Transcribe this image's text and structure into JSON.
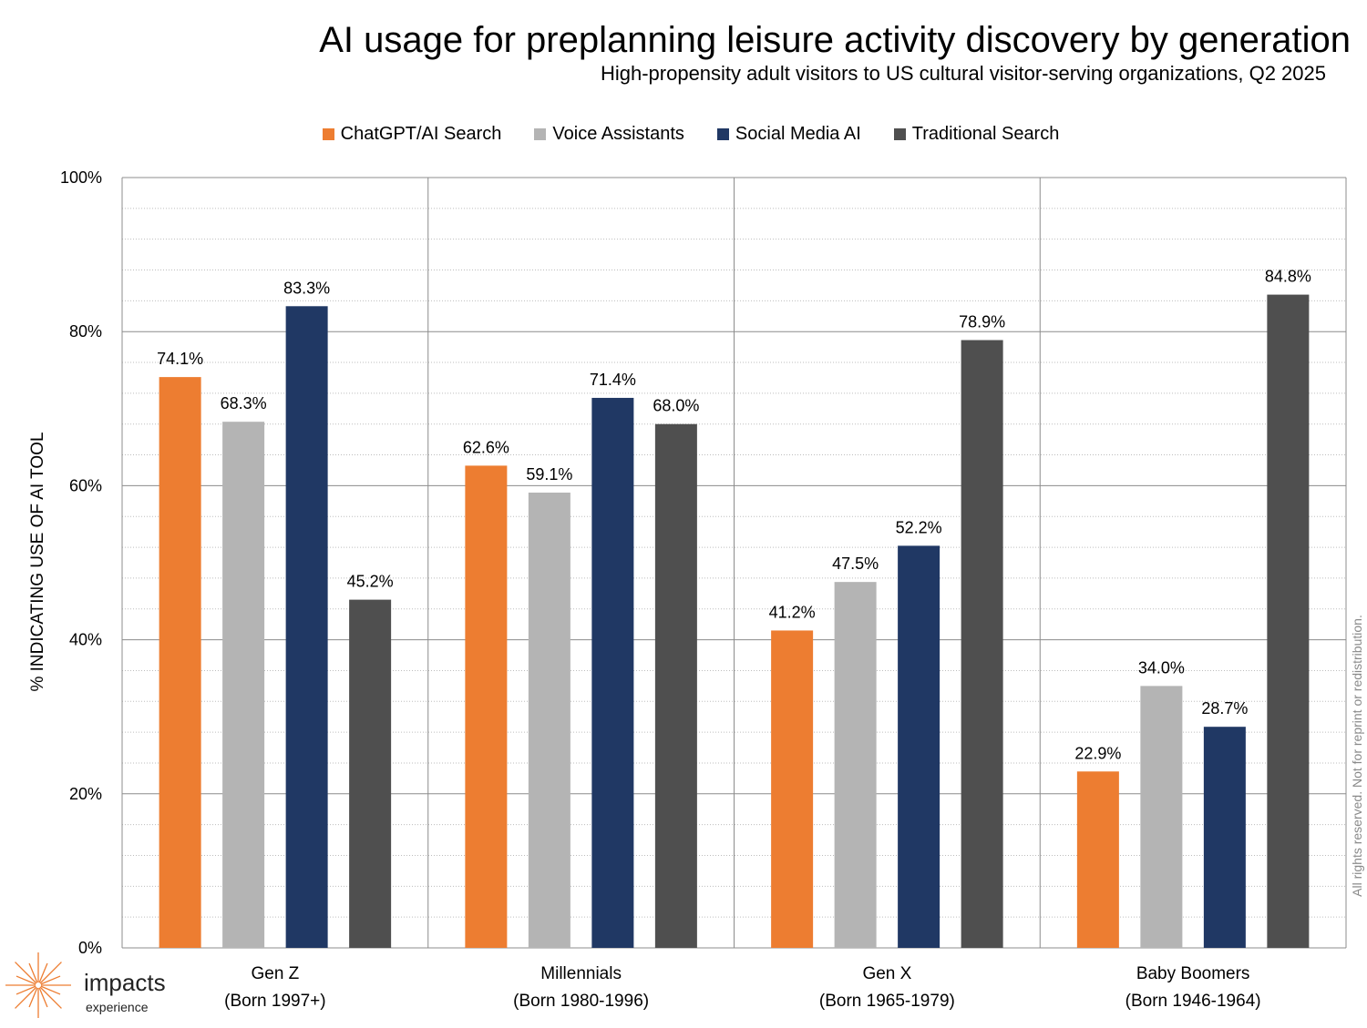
{
  "chart_data": {
    "type": "bar",
    "title": "AI usage for preplanning leisure activity discovery by generation",
    "subtitle": "High-propensity adult visitors to US cultural visitor-serving organizations, Q2 2025",
    "ylabel": "% INDICATING USE OF AI TOOL",
    "xlabel": "",
    "ylim": [
      0,
      100
    ],
    "yticks": [
      0,
      20,
      40,
      60,
      80,
      100
    ],
    "ytick_labels": [
      "0%",
      "20%",
      "40%",
      "60%",
      "80%",
      "100%"
    ],
    "grid": true,
    "legend_position": "top-center",
    "categories": [
      {
        "name": "Gen Z",
        "sub": "(Born 1997+)"
      },
      {
        "name": "Millennials",
        "sub": "(Born 1980-1996)"
      },
      {
        "name": "Gen X",
        "sub": "(Born 1965-1979)"
      },
      {
        "name": "Baby Boomers",
        "sub": "(Born 1946-1964)"
      }
    ],
    "series": [
      {
        "name": "ChatGPT/AI Search",
        "color": "#ED7D31",
        "values": [
          74.1,
          62.6,
          41.2,
          22.9
        ],
        "labels": [
          "74.1%",
          "62.6%",
          "41.2%",
          "22.9%"
        ]
      },
      {
        "name": "Voice Assistants",
        "color": "#B4B4B4",
        "values": [
          68.3,
          59.1,
          47.5,
          34.0
        ],
        "labels": [
          "68.3%",
          "59.1%",
          "47.5%",
          "34.0%"
        ]
      },
      {
        "name": "Social Media AI",
        "color": "#203864",
        "values": [
          83.3,
          71.4,
          52.2,
          28.7
        ],
        "labels": [
          "83.3%",
          "71.4%",
          "52.2%",
          "28.7%"
        ]
      },
      {
        "name": "Traditional Search",
        "color": "#4F4F4F",
        "values": [
          45.2,
          68.0,
          78.9,
          84.8
        ],
        "labels": [
          "45.2%",
          "68.0%",
          "78.9%",
          "84.8%"
        ]
      }
    ]
  },
  "footer": {
    "copyright": "All rights reserved. Not for reprint or redistribution.",
    "logo_word": "impacts",
    "logo_sub": "experience",
    "logo_color": "#ED7D31"
  }
}
